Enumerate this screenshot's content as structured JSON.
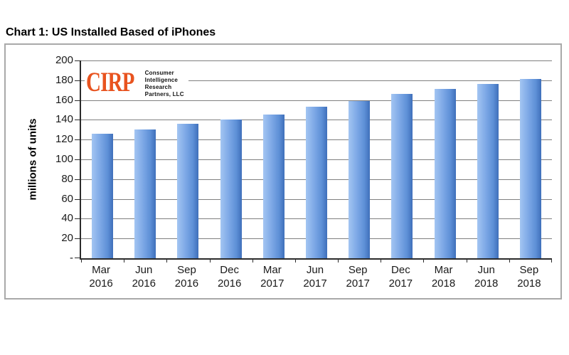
{
  "title": "Chart 1: US Installed Based of iPhones",
  "logo": {
    "abbr": "CIRP",
    "color": "#e8531f",
    "lines": [
      "Consumer",
      "Intelligence",
      "Research",
      "Partners, LLC"
    ]
  },
  "chart_data": {
    "type": "bar",
    "title": "Chart 1: US Installed Based of iPhones",
    "categories": [
      "Mar 2016",
      "Jun 2016",
      "Sep 2016",
      "Dec 2016",
      "Mar 2017",
      "Jun 2017",
      "Sep 2017",
      "Dec 2017",
      "Mar 2018",
      "Jun 2018",
      "Sep 2018"
    ],
    "values": [
      126,
      130,
      136,
      140,
      145,
      153,
      159,
      166,
      171,
      176,
      181
    ],
    "xlabel": "",
    "ylabel": "millions of units",
    "ylim": [
      0,
      200
    ],
    "ytick_step": 20,
    "ytick_labels": [
      "-",
      "20",
      "40",
      "60",
      "80",
      "100",
      "120",
      "140",
      "160",
      "180",
      "200"
    ],
    "zero_tick_label": "-",
    "grid": true,
    "legend": false,
    "bar_gradient": [
      "#a3c5f2",
      "#7da8e6",
      "#3f6fba"
    ],
    "gridline_color": "#7f7f7f",
    "axis_color": "#2b2b2b"
  }
}
